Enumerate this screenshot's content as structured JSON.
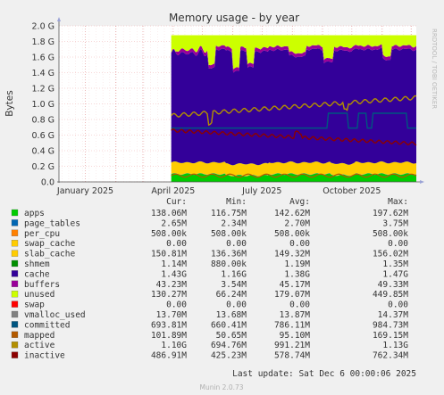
{
  "chart_data": {
    "type": "area",
    "title": "Memory usage - by year",
    "ylabel": "Bytes",
    "xlabel": "",
    "ylim": [
      0,
      2000000000
    ],
    "yticks": [
      {
        "v": 0,
        "label": "0.0"
      },
      {
        "v": 200000000,
        "label": "0.2 G"
      },
      {
        "v": 400000000,
        "label": "0.4 G"
      },
      {
        "v": 600000000,
        "label": "0.6 G"
      },
      {
        "v": 800000000,
        "label": "0.8 G"
      },
      {
        "v": 1000000000,
        "label": "1.0 G"
      },
      {
        "v": 1200000000,
        "label": "1.2 G"
      },
      {
        "v": 1400000000,
        "label": "1.4 G"
      },
      {
        "v": 1600000000,
        "label": "1.6 G"
      },
      {
        "v": 1800000000,
        "label": "1.8 G"
      },
      {
        "v": 2000000000,
        "label": "2.0 G"
      }
    ],
    "xlim": [
      "2024-12-05",
      "2025-12-06"
    ],
    "xticks": [
      {
        "date": "2025-01-01",
        "label": "January 2025"
      },
      {
        "date": "2025-04-01",
        "label": "April 2025"
      },
      {
        "date": "2025-07-01",
        "label": "July 2025"
      },
      {
        "date": "2025-10-01",
        "label": "October 2025"
      }
    ],
    "grid": true,
    "data_start": "2025-03-30",
    "columns": [
      "Cur:",
      "Min:",
      "Avg:",
      "Max:"
    ],
    "legend": [
      {
        "name": "apps",
        "color": "#00cc00",
        "cur": "138.06M",
        "min": "116.75M",
        "avg": "142.62M",
        "max": "197.62M"
      },
      {
        "name": "page_tables",
        "color": "#0066b3",
        "cur": "2.65M",
        "min": "2.34M",
        "avg": "2.70M",
        "max": "3.75M"
      },
      {
        "name": "per_cpu",
        "color": "#ff8000",
        "cur": "508.00k",
        "min": "508.00k",
        "avg": "508.00k",
        "max": "508.00k"
      },
      {
        "name": "swap_cache",
        "color": "#ffcc00",
        "cur": "0.00",
        "min": "0.00",
        "avg": "0.00",
        "max": "0.00"
      },
      {
        "name": "slab_cache",
        "color": "#ffcc00",
        "cur": "150.81M",
        "min": "136.36M",
        "avg": "149.32M",
        "max": "156.02M"
      },
      {
        "name": "shmem",
        "color": "#008f00",
        "cur": "1.14M",
        "min": "880.00k",
        "avg": "1.19M",
        "max": "1.35M"
      },
      {
        "name": "cache",
        "color": "#330099",
        "cur": "1.43G",
        "min": "1.16G",
        "avg": "1.38G",
        "max": "1.47G"
      },
      {
        "name": "buffers",
        "color": "#990099",
        "cur": "43.23M",
        "min": "3.54M",
        "avg": "45.17M",
        "max": "49.33M"
      },
      {
        "name": "unused",
        "color": "#ccff00",
        "cur": "130.27M",
        "min": "66.24M",
        "avg": "179.07M",
        "max": "449.85M"
      },
      {
        "name": "swap",
        "color": "#ff0000",
        "cur": "0.00",
        "min": "0.00",
        "avg": "0.00",
        "max": "0.00"
      },
      {
        "name": "vmalloc_used",
        "color": "#808080",
        "cur": "13.70M",
        "min": "13.68M",
        "avg": "13.87M",
        "max": "14.37M"
      },
      {
        "name": "committed",
        "color": "#005580",
        "cur": "693.81M",
        "min": "660.41M",
        "avg": "786.11M",
        "max": "984.73M"
      },
      {
        "name": "mapped",
        "color": "#b35a00",
        "cur": "101.89M",
        "min": "50.65M",
        "avg": "95.10M",
        "max": "169.15M"
      },
      {
        "name": "active",
        "color": "#b38f00",
        "cur": "1.10G",
        "min": "694.76M",
        "avg": "991.21M",
        "max": "1.13G"
      },
      {
        "name": "inactive",
        "color": "#8c0000",
        "cur": "486.91M",
        "min": "425.23M",
        "avg": "578.74M",
        "max": "762.34M"
      }
    ]
  },
  "side_label": "RRDTOOL / TOBI OETIKER",
  "last_update": "Last update:  Sat Dec  6 00:00:06 2025",
  "footer": "Munin 2.0.73"
}
